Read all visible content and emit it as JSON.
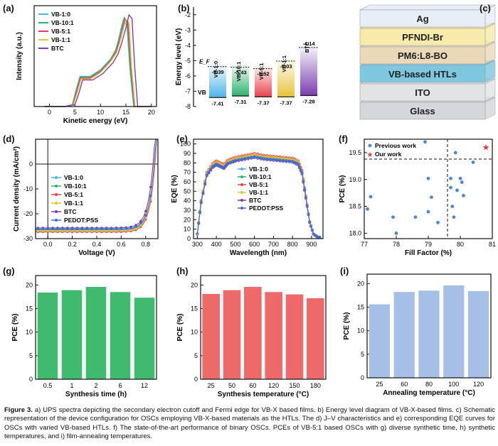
{
  "panels": {
    "a": {
      "label": "(a)"
    },
    "b": {
      "label": "(b)"
    },
    "c": {
      "label": "(c)"
    },
    "d": {
      "label": "(d)"
    },
    "e": {
      "label": "(e)"
    },
    "f": {
      "label": "(f)"
    },
    "g": {
      "label": "(g)"
    },
    "h": {
      "label": "(h)"
    },
    "i": {
      "label": "(i)"
    }
  },
  "colors": {
    "vb1_0": "#4fb3e8",
    "vb10_1": "#2fb36e",
    "vb5_1": "#e8414b",
    "vb1_1": "#e8c23a",
    "btc": "#7b3fb0",
    "pedot": "#3a6fd0",
    "green_bar": "#3fba6f",
    "red_bar": "#ee6a6a",
    "blue_bar": "#a5bfe6"
  },
  "device_stack": {
    "layers": [
      "Ag",
      "PFNDI-Br",
      "PM6:L8-BO",
      "VB-based HTLs",
      "ITO",
      "Glass"
    ]
  },
  "caption": {
    "figure_label": "Figure 3.",
    "text": "a) UPS spectra depicting the secondary electron cutoff and Fermi edge for VB-X based films. b) Energy level diagram of VB-X-based films. c) Schematic representation of the device configuration for OSCs employing VB-X-based materials as the HTLs. The d) J–V characteristics and e) corresponding EQE curves for OSCs with varied VB-based HTLs. f) The state-of-the-art performance of binary OSCs. PCEs of VB-5:1 based OSCs with g) diverse synthetic time, h) synthetic temperatures, and i) film-annealing temperatures."
  },
  "chart_data": [
    {
      "id": "a",
      "type": "line",
      "title": "",
      "xlabel": "Kinetic energy (eV)",
      "ylabel": "Intensity (a.u.)",
      "xlim": [
        -3,
        21
      ],
      "ylim": [
        0,
        1.1
      ],
      "xticks": [
        0,
        5,
        10,
        15,
        20
      ],
      "series": [
        {
          "name": "VB-1:0",
          "color": "#4fb3e8",
          "x": [
            -1,
            3,
            4.5,
            5.2,
            6,
            8,
            10,
            12,
            13,
            13.5,
            14,
            14.5,
            15.2,
            15.8,
            16.5,
            20
          ],
          "y": [
            0,
            0,
            0.02,
            0.18,
            0.33,
            0.33,
            0.4,
            0.52,
            0.62,
            0.72,
            0.84,
            0.95,
            0.88,
            0.4,
            0,
            0
          ]
        },
        {
          "name": "VB-10:1",
          "color": "#2fb36e",
          "x": [
            -1,
            3,
            4.5,
            5.3,
            6,
            8,
            10,
            12,
            13,
            13.6,
            14.2,
            14.7,
            15.3,
            15.9,
            16.6,
            20
          ],
          "y": [
            0,
            0,
            0.02,
            0.17,
            0.32,
            0.32,
            0.39,
            0.51,
            0.61,
            0.72,
            0.85,
            0.97,
            0.9,
            0.4,
            0,
            0
          ]
        },
        {
          "name": "VB-5:1",
          "color": "#e8414b",
          "x": [
            -1,
            3,
            4.6,
            5.4,
            6.1,
            8,
            10,
            12,
            13.1,
            13.7,
            14.3,
            14.8,
            15.4,
            16,
            16.7,
            20
          ],
          "y": [
            0,
            0,
            0.02,
            0.17,
            0.31,
            0.31,
            0.38,
            0.5,
            0.6,
            0.71,
            0.84,
            0.96,
            0.91,
            0.42,
            0,
            0
          ]
        },
        {
          "name": "VB-1:1",
          "color": "#e8c23a",
          "x": [
            -1,
            3,
            4.7,
            5.5,
            6.2,
            8,
            10,
            12,
            13.2,
            13.8,
            14.4,
            15,
            15.6,
            16.1,
            16.8,
            20
          ],
          "y": [
            0,
            0,
            0.02,
            0.16,
            0.3,
            0.3,
            0.37,
            0.49,
            0.59,
            0.7,
            0.83,
            0.95,
            0.92,
            0.43,
            0,
            0
          ]
        },
        {
          "name": "BTC",
          "color": "#7b3fb0",
          "x": [
            -1,
            3,
            5,
            5.8,
            6.5,
            8.5,
            10.5,
            12.5,
            13.5,
            14.2,
            15,
            15.6,
            16.2,
            16.7,
            17.3,
            20
          ],
          "y": [
            0,
            0,
            0.02,
            0.15,
            0.29,
            0.29,
            0.36,
            0.48,
            0.58,
            0.7,
            0.86,
            1.0,
            0.96,
            0.45,
            0,
            0
          ]
        }
      ]
    },
    {
      "id": "b",
      "type": "bar",
      "ylabel": "Energy level (eV)",
      "ylim": [
        -8,
        -1.5
      ],
      "yticks": [
        -2,
        -3,
        -4,
        -5,
        -6,
        -7,
        -8
      ],
      "ef_label": "E_F",
      "vb_label": "VB",
      "categories": [
        "VB-1:0",
        "VB-10:1",
        "VB-5:1",
        "VB-1:1",
        "BTC"
      ],
      "ef": [
        -5.39,
        -5.43,
        -5.52,
        -5.03,
        -4.14
      ],
      "vb": [
        -7.41,
        -7.31,
        -7.37,
        -7.37,
        -7.28
      ],
      "ef_labels": [
        "-5.39",
        "-5.43",
        "-5.52",
        "-5.03",
        "-4.14"
      ],
      "vb_labels": [
        "-7.41",
        "-7.31",
        "-7.37",
        "-7.37",
        "-7.28"
      ],
      "colors": [
        "#4fb3e8",
        "#2fb36e",
        "#e8414b",
        "#e8c23a",
        "#7b3fb0"
      ]
    },
    {
      "id": "d",
      "type": "line",
      "xlabel": "Voltage (V)",
      "ylabel": "Current density (mA/cm²)",
      "xlim": [
        -0.1,
        0.9
      ],
      "ylim": [
        -30,
        10
      ],
      "xticks": [
        0.0,
        0.2,
        0.4,
        0.6,
        0.8
      ],
      "yticks": [
        0,
        -10,
        -20,
        -30
      ],
      "series": [
        {
          "name": "VB-1:0",
          "color": "#4fb3e8",
          "jsc": -26.4,
          "voc": 0.872
        },
        {
          "name": "VB-10:1",
          "color": "#2fb36e",
          "jsc": -26.6,
          "voc": 0.874
        },
        {
          "name": "VB-5:1",
          "color": "#e8414b",
          "jsc": -27.3,
          "voc": 0.876
        },
        {
          "name": "VB-1:1",
          "color": "#e8c23a",
          "jsc": -26.9,
          "voc": 0.873
        },
        {
          "name": "BTC",
          "color": "#7b3fb0",
          "jsc": -25.7,
          "voc": 0.86
        },
        {
          "name": "PEDOT:PSS",
          "color": "#3a6fd0",
          "jsc": -26.1,
          "voc": 0.87
        }
      ]
    },
    {
      "id": "e",
      "type": "line",
      "xlabel": "Wavelength (nm)",
      "ylabel": "EQE (%)",
      "xlim": [
        280,
        960
      ],
      "ylim": [
        0,
        105
      ],
      "xticks": [
        300,
        400,
        500,
        600,
        700,
        800,
        900
      ],
      "yticks": [
        0,
        10,
        20,
        30,
        40,
        50,
        60,
        70,
        80,
        90,
        100
      ],
      "series": [
        {
          "name": "VB-1:0",
          "color": "#4fb3e8",
          "scale": 0.97
        },
        {
          "name": "VB-10:1",
          "color": "#2fb36e",
          "scale": 0.98
        },
        {
          "name": "VB-5:1",
          "color": "#e8414b",
          "scale": 1.0
        },
        {
          "name": "VB-1:1",
          "color": "#e8c23a",
          "scale": 0.985
        },
        {
          "name": "BTC",
          "color": "#7b3fb0",
          "scale": 0.95
        },
        {
          "name": "PEDOT:PSS",
          "color": "#3a6fd0",
          "scale": 0.96
        }
      ]
    },
    {
      "id": "f",
      "type": "scatter",
      "xlabel": "Fill Factor (%)",
      "ylabel": "PCE (%)",
      "xlim": [
        77,
        81
      ],
      "ylim": [
        17.9,
        19.75
      ],
      "xticks": [
        77,
        78,
        79,
        80,
        81
      ],
      "yticks": [
        18.0,
        18.5,
        19.0,
        19.5
      ],
      "legend": [
        "Previous work",
        "Our work"
      ],
      "previous": [
        [
          77.1,
          18.45
        ],
        [
          77.2,
          18.68
        ],
        [
          77.9,
          18.3
        ],
        [
          78.0,
          18.0
        ],
        [
          78.6,
          18.3
        ],
        [
          78.9,
          19.7
        ],
        [
          79.0,
          19.02
        ],
        [
          79.0,
          18.4
        ],
        [
          79.1,
          18.67
        ],
        [
          79.3,
          18.2
        ],
        [
          79.7,
          19.02
        ],
        [
          79.7,
          18.85
        ],
        [
          79.75,
          18.5
        ],
        [
          79.8,
          18.3
        ],
        [
          79.85,
          19.5
        ],
        [
          79.9,
          18.8
        ],
        [
          80.0,
          19.02
        ],
        [
          80.05,
          18.95
        ],
        [
          80.1,
          18.7
        ],
        [
          80.4,
          19.32
        ]
      ],
      "ours": [
        [
          80.8,
          19.6
        ]
      ],
      "hline": 19.38,
      "vline": 79.6
    },
    {
      "id": "g",
      "type": "bar",
      "xlabel": "Synthesis time (h)",
      "ylabel": "PCE (%)",
      "ylim": [
        0,
        22
      ],
      "yticks": [
        0,
        5,
        10,
        15,
        20
      ],
      "categories": [
        "0.5",
        "1",
        "2",
        "6",
        "12"
      ],
      "values": [
        18.4,
        18.9,
        19.6,
        18.5,
        17.3
      ],
      "color": "#3fba6f"
    },
    {
      "id": "h",
      "type": "bar",
      "xlabel": "Synthesis temperature (°C)",
      "ylabel": "PCE (%)",
      "ylim": [
        0,
        22
      ],
      "yticks": [
        0,
        5,
        10,
        15,
        20
      ],
      "categories": [
        "25",
        "50",
        "60",
        "120",
        "150",
        "180"
      ],
      "values": [
        18.1,
        18.9,
        19.6,
        18.5,
        18.0,
        17.2
      ],
      "color": "#ee6a6a"
    },
    {
      "id": "i",
      "type": "bar",
      "xlabel": "Annealing temperature (°C)",
      "ylabel": "PCE (%)",
      "ylim": [
        0,
        22
      ],
      "yticks": [
        0,
        5,
        10,
        15,
        20
      ],
      "categories": [
        "25",
        "60",
        "80",
        "100",
        "120"
      ],
      "values": [
        15.6,
        18.2,
        18.5,
        19.6,
        18.4
      ],
      "color": "#a5bfe6"
    }
  ]
}
